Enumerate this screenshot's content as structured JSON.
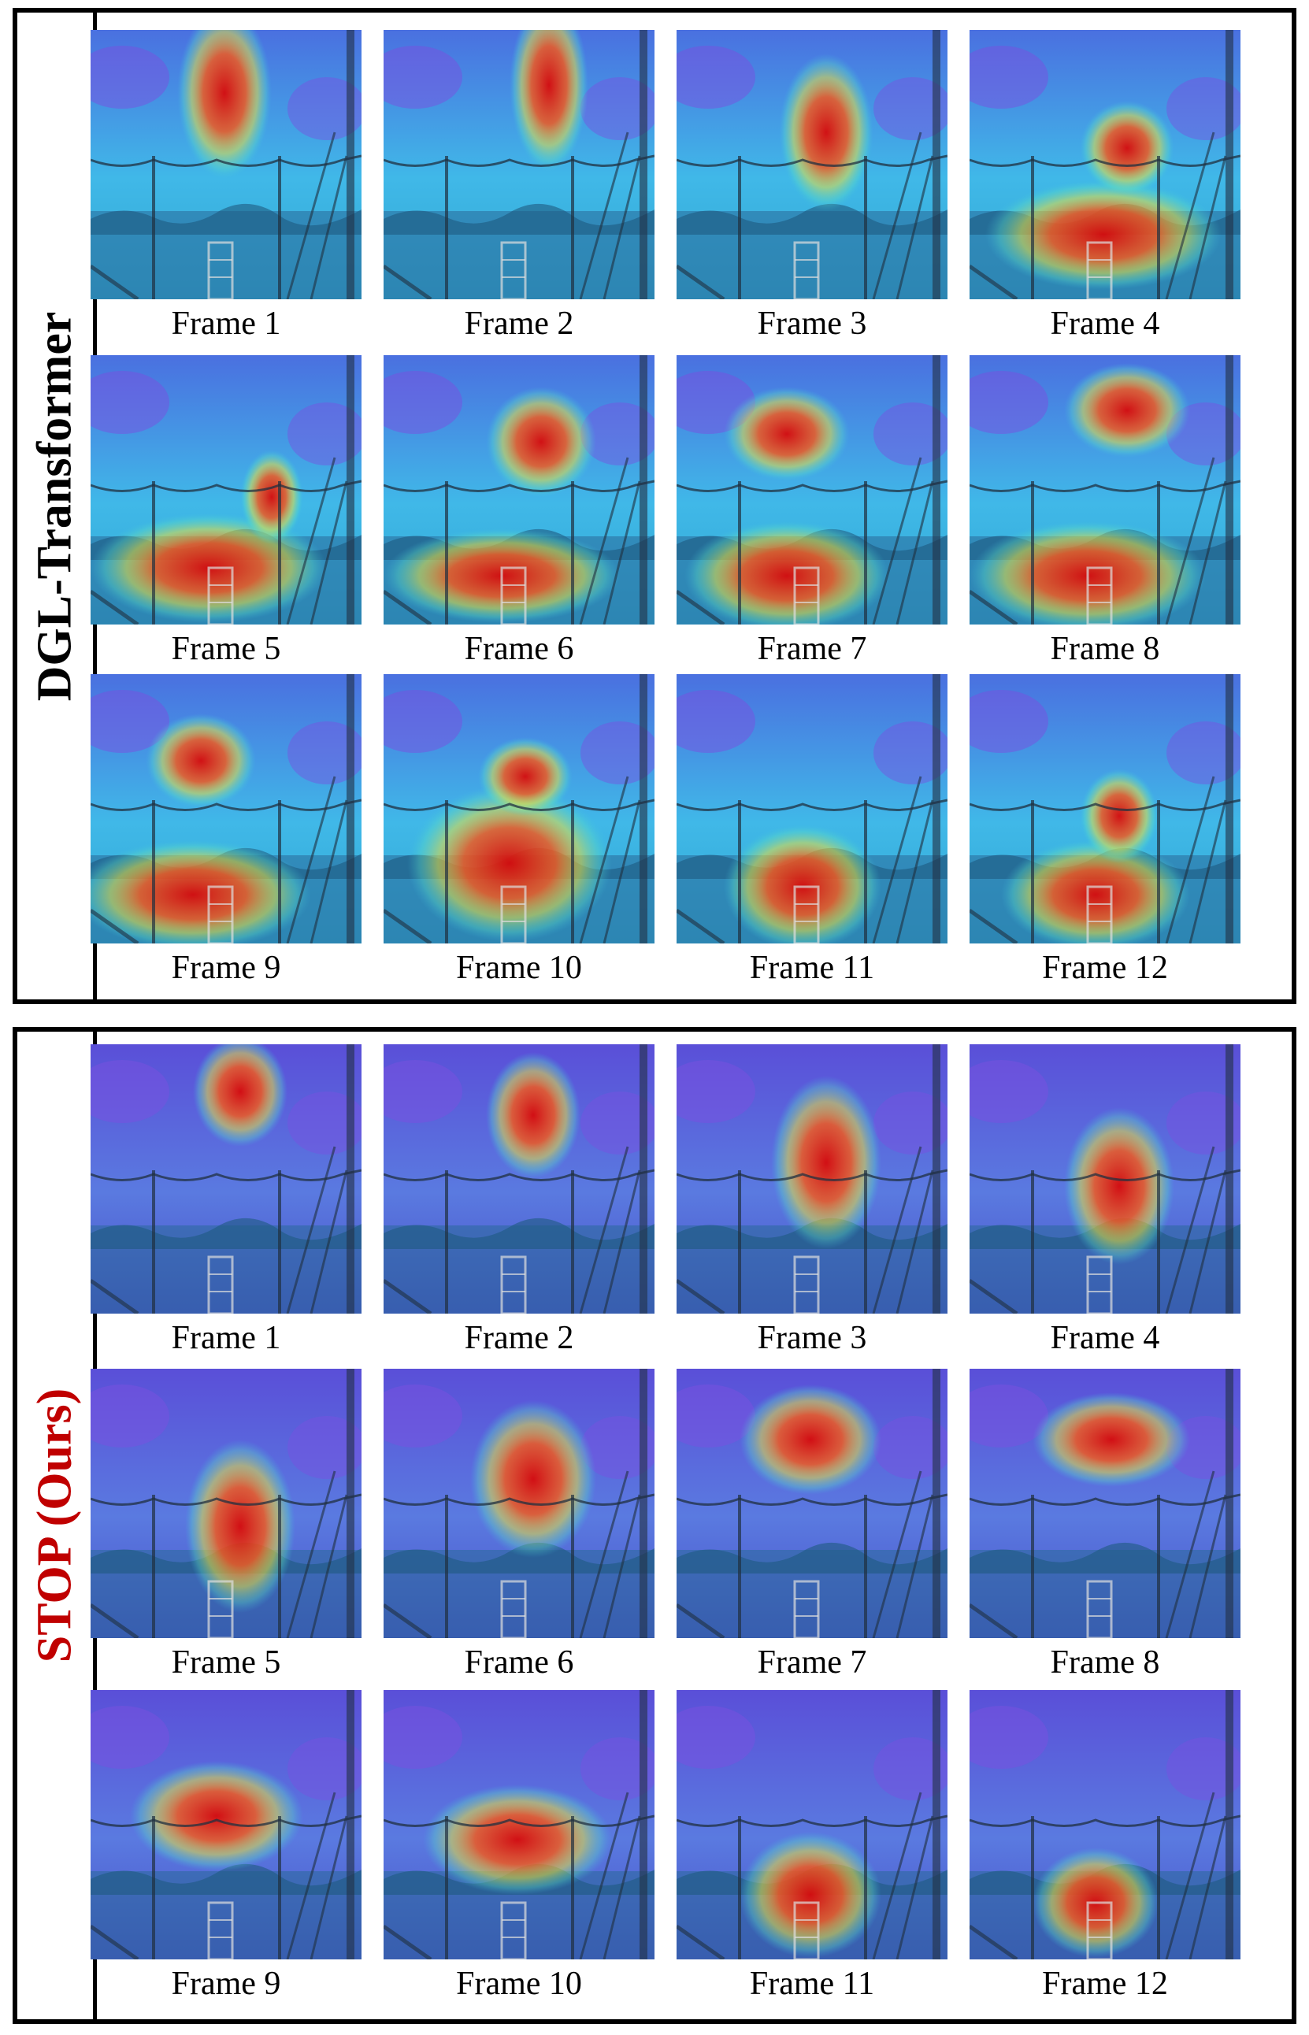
{
  "panels": [
    {
      "label": "DGL-Transformer",
      "label_color": "#000000",
      "frames": [
        "Frame 1",
        "Frame 2",
        "Frame 3",
        "Frame 4",
        "Frame 5",
        "Frame 6",
        "Frame 7",
        "Frame 8",
        "Frame 9",
        "Frame 10",
        "Frame 11",
        "Frame 12"
      ]
    },
    {
      "label": "STOP (Ours)",
      "label_color": "#c00000",
      "frames": [
        "Frame 1",
        "Frame 2",
        "Frame 3",
        "Frame 4",
        "Frame 5",
        "Frame 6",
        "Frame 7",
        "Frame 8",
        "Frame 9",
        "Frame 10",
        "Frame 11",
        "Frame 12"
      ]
    }
  ],
  "colors": {
    "heat_high": "#e01010",
    "heat_mid": "#e8d840",
    "heat_low": "#30c8e8",
    "heat_base": "#6a60e0"
  }
}
